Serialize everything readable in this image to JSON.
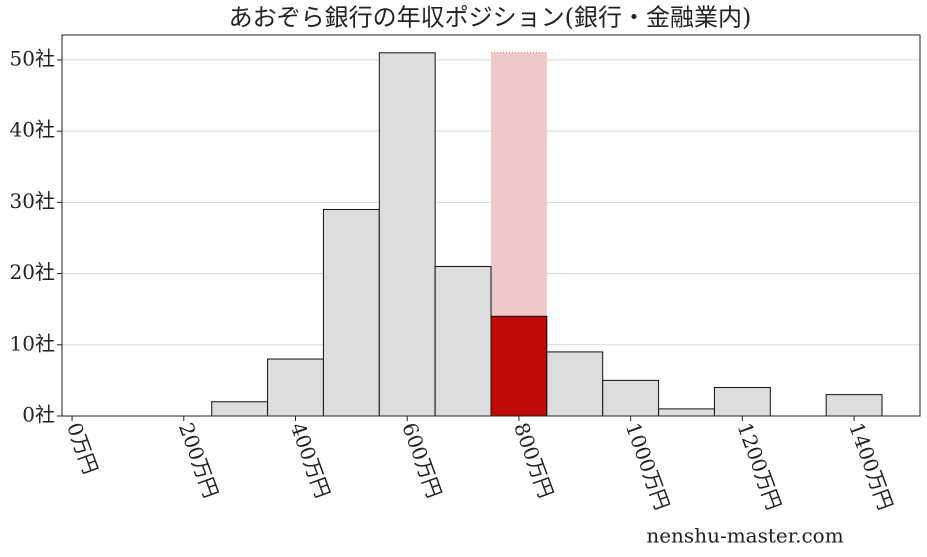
{
  "chart_data": {
    "type": "histogram",
    "title": "あおぞら銀行の年収ポジション(銀行・金融業内)",
    "bins": [
      250,
      350,
      450,
      550,
      650,
      750,
      850,
      950,
      1050,
      1150,
      1250,
      1350,
      1450
    ],
    "values": [
      2,
      8,
      29,
      51,
      21,
      14,
      9,
      5,
      1,
      4,
      0,
      3
    ],
    "color": "#dcdddf",
    "highlight": {
      "index": 5,
      "color": "#c00a0a",
      "band_color": "#f0c8c8"
    },
    "xlim": [
      -18,
      1518
    ],
    "ylim": [
      0,
      53.5
    ],
    "xticks": [
      {
        "value": 0,
        "label": "0万円"
      },
      {
        "value": 200,
        "label": "200万円"
      },
      {
        "value": 400,
        "label": "400万円"
      },
      {
        "value": 600,
        "label": "600万円"
      },
      {
        "value": 800,
        "label": "800万円"
      },
      {
        "value": 1000,
        "label": "1000万円"
      },
      {
        "value": 1200,
        "label": "1200万円"
      },
      {
        "value": 1400,
        "label": "1400万円"
      }
    ],
    "yticks": [
      {
        "value": 0,
        "label": "0社"
      },
      {
        "value": 10,
        "label": "10社"
      },
      {
        "value": 20,
        "label": "20社"
      },
      {
        "value": 30,
        "label": "30社"
      },
      {
        "value": 40,
        "label": "40社"
      },
      {
        "value": 50,
        "label": "50社"
      }
    ],
    "grid": true,
    "watermark": "nenshu-master.com"
  }
}
